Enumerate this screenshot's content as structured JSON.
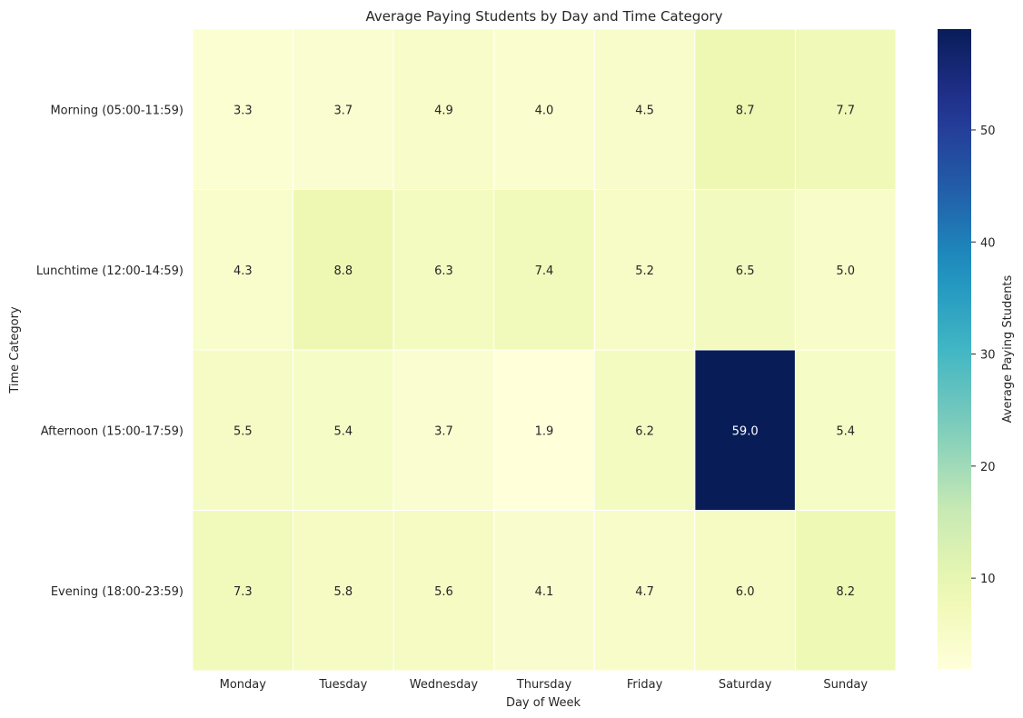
{
  "chart_data": {
    "type": "heatmap",
    "title": "Average Paying Students by Day and Time Category",
    "xlabel": "Day of Week",
    "ylabel": "Time Category",
    "x": [
      "Monday",
      "Tuesday",
      "Wednesday",
      "Thursday",
      "Friday",
      "Saturday",
      "Sunday"
    ],
    "y": [
      "Morning (05:00-11:59)",
      "Lunchtime (12:00-14:59)",
      "Afternoon (15:00-17:59)",
      "Evening (18:00-23:59)"
    ],
    "values": [
      [
        3.3,
        3.7,
        4.9,
        4.0,
        4.5,
        8.7,
        7.7
      ],
      [
        4.3,
        8.8,
        6.3,
        7.4,
        5.2,
        6.5,
        5.0
      ],
      [
        5.5,
        5.4,
        3.7,
        1.9,
        6.2,
        59.0,
        5.4
      ],
      [
        7.3,
        5.8,
        5.6,
        4.1,
        4.7,
        6.0,
        8.2
      ]
    ],
    "value_labels": [
      [
        "3.3",
        "3.7",
        "4.9",
        "4.0",
        "4.5",
        "8.7",
        "7.7"
      ],
      [
        "4.3",
        "8.8",
        "6.3",
        "7.4",
        "5.2",
        "6.5",
        "5.0"
      ],
      [
        "5.5",
        "5.4",
        "3.7",
        "1.9",
        "6.2",
        "59.0",
        "5.4"
      ],
      [
        "7.3",
        "5.8",
        "5.6",
        "4.1",
        "4.7",
        "6.0",
        "8.2"
      ]
    ],
    "colormap": "YlGnBu",
    "colorbar": {
      "label": "Average Paying Students",
      "range": [
        1.9,
        59.0
      ],
      "ticks": [
        10,
        20,
        30,
        40,
        50
      ],
      "tick_labels": [
        "10",
        "20",
        "30",
        "40",
        "50"
      ]
    },
    "grid": false
  }
}
